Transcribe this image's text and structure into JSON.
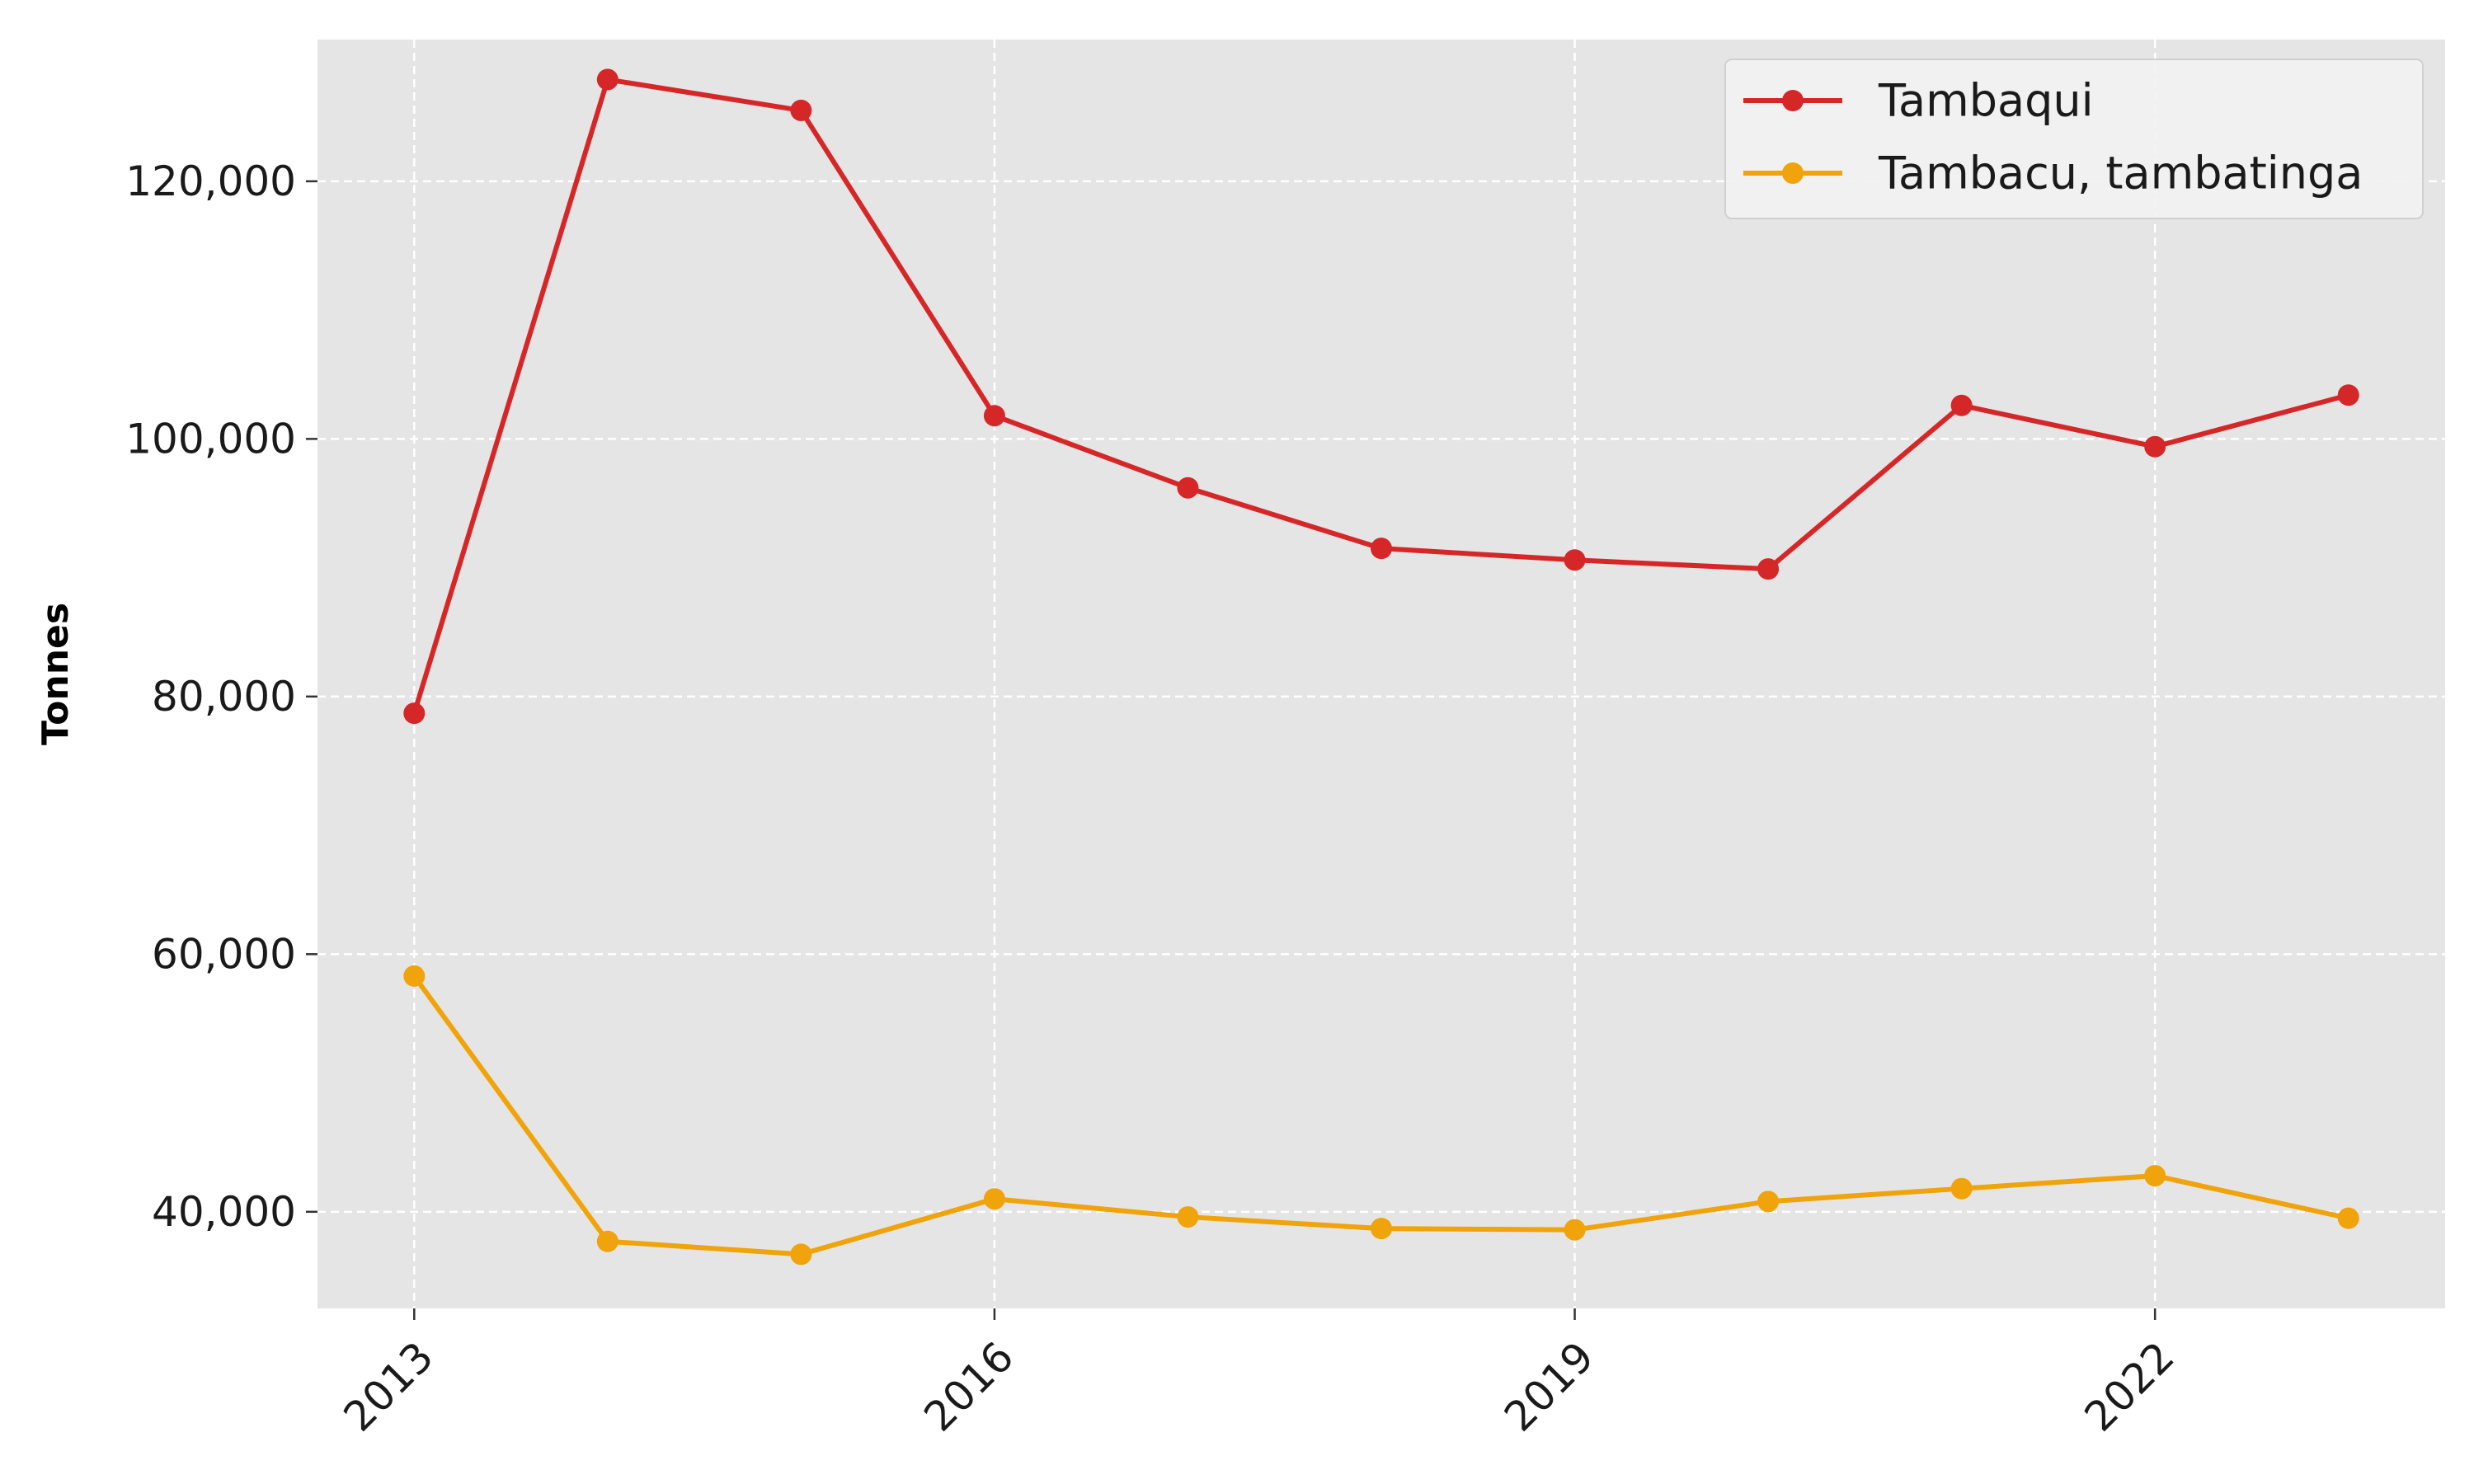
{
  "chart_data": {
    "type": "line",
    "ylabel": "Tonnes",
    "xlabel": "",
    "x": [
      2013,
      2014,
      2015,
      2016,
      2017,
      2018,
      2019,
      2020,
      2021,
      2022,
      2023
    ],
    "xticks": [
      2013,
      2016,
      2019,
      2022
    ],
    "xtick_labels": [
      "2013",
      "2016",
      "2019",
      "2022"
    ],
    "xlim": [
      2012.5,
      2023.5
    ],
    "ylim": [
      32500,
      131000
    ],
    "yticks": [
      40000,
      60000,
      80000,
      100000,
      120000
    ],
    "ytick_labels": [
      "40,000",
      "60,000",
      "80,000",
      "100,000",
      "120,000"
    ],
    "grid": true,
    "legend_position": "top-right",
    "background": "#e5e5e5",
    "series": [
      {
        "name": "Tambaqui",
        "color": "#d62728",
        "values": [
          78700,
          127900,
          125500,
          101800,
          96200,
          91500,
          90600,
          89900,
          102600,
          99400,
          103400
        ]
      },
      {
        "name": "Tambacu, tambatinga",
        "color": "#f0a30a",
        "values": [
          58300,
          37700,
          36700,
          41000,
          39600,
          38700,
          38600,
          40800,
          41800,
          42800,
          39500
        ]
      }
    ]
  }
}
